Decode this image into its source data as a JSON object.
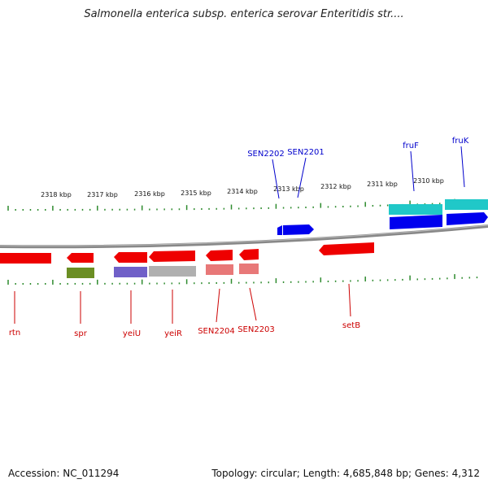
{
  "title": "Salmonella enterica subsp. enterica serovar Enteritidis str....",
  "footer": {
    "accession": "Accession: NC_011294",
    "topology": "Topology: circular; Length: 4,685,848 bp; Genes: 4,312"
  },
  "ruler": {
    "labels": [
      "2318 kbp",
      "2317 kbp",
      "2316 kbp",
      "2315 kbp",
      "2314 kbp",
      "2313 kbp",
      "2312 kbp",
      "2311 kbp",
      "2310 kbp"
    ]
  },
  "genes_top": [
    {
      "name": "SEN2202",
      "color": "#0000cc"
    },
    {
      "name": "SEN2201",
      "color": "#0000cc"
    },
    {
      "name": "fruF",
      "color": "#0000cc"
    },
    {
      "name": "fruK",
      "color": "#0000cc"
    }
  ],
  "genes_bottom": [
    {
      "name": "rtn",
      "color": "#cc0000"
    },
    {
      "name": "spr",
      "color": "#cc0000"
    },
    {
      "name": "yeiU",
      "color": "#cc0000"
    },
    {
      "name": "yeiR",
      "color": "#cc0000"
    },
    {
      "name": "SEN2204",
      "color": "#cc0000"
    },
    {
      "name": "SEN2203",
      "color": "#cc0000"
    },
    {
      "name": "setB",
      "color": "#cc0000"
    }
  ],
  "colors": {
    "forward_strand": "#0000ee",
    "reverse_strand": "#ee0000",
    "cog_cyan": "#20c8c8",
    "cog_green": "#6b8e23",
    "cog_purple": "#7060c8",
    "cog_gray": "#b0b0b0",
    "cog_pink": "#e87878",
    "ruler_ticks": "#2e8b2e",
    "backbone": "#888888"
  }
}
